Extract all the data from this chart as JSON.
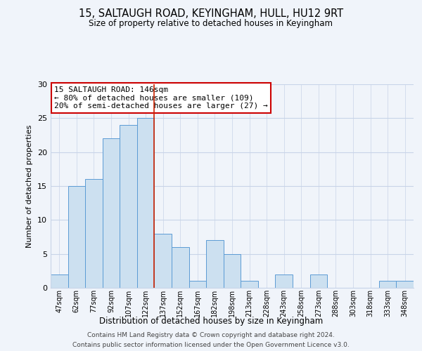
{
  "title": "15, SALTAUGH ROAD, KEYINGHAM, HULL, HU12 9RT",
  "subtitle": "Size of property relative to detached houses in Keyingham",
  "xlabel": "Distribution of detached houses by size in Keyingham",
  "ylabel": "Number of detached properties",
  "bar_labels": [
    "47sqm",
    "62sqm",
    "77sqm",
    "92sqm",
    "107sqm",
    "122sqm",
    "137sqm",
    "152sqm",
    "167sqm",
    "182sqm",
    "198sqm",
    "213sqm",
    "228sqm",
    "243sqm",
    "258sqm",
    "273sqm",
    "288sqm",
    "303sqm",
    "318sqm",
    "333sqm",
    "348sqm"
  ],
  "bar_values": [
    2,
    15,
    16,
    22,
    24,
    25,
    8,
    6,
    1,
    7,
    5,
    1,
    0,
    2,
    0,
    2,
    0,
    0,
    0,
    1,
    1
  ],
  "bar_color": "#cce0f0",
  "bar_edge_color": "#5b9bd5",
  "annotation_title": "15 SALTAUGH ROAD: 146sqm",
  "annotation_line1": "← 80% of detached houses are smaller (109)",
  "annotation_line2": "20% of semi-detached houses are larger (27) →",
  "annotation_box_color": "#ffffff",
  "annotation_box_edge": "#cc0000",
  "property_line_x": 5.5,
  "ylim": [
    0,
    30
  ],
  "yticks": [
    0,
    5,
    10,
    15,
    20,
    25,
    30
  ],
  "footer_line1": "Contains HM Land Registry data © Crown copyright and database right 2024.",
  "footer_line2": "Contains public sector information licensed under the Open Government Licence v3.0.",
  "bg_color": "#f0f4fa",
  "grid_color": "#c8d4e8"
}
